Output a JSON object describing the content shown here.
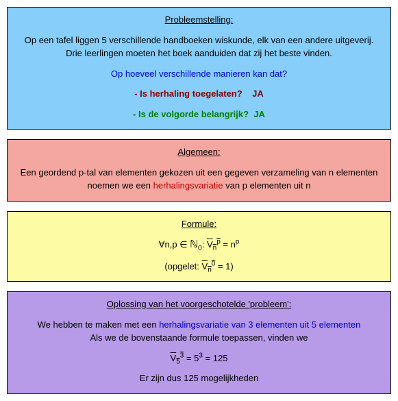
{
  "box1": {
    "bg": "#87cefa",
    "title": "Probleemstelling:",
    "p1": "Op een tafel liggen 5 verschillende handboeken wiskunde, elk van een andere uitgeverij. Drie leerlingen moeten het boek aanduiden dat zij het beste vinden.",
    "p2": "Op hoeveel verschillende manieren kan dat?",
    "q1_label": "- Is herhaling toegelaten?",
    "q1_ans": "JA",
    "q2_label": "- Is de volgorde belangrijk?",
    "q2_ans": "JA"
  },
  "box2": {
    "bg": "#f4a7a0",
    "title": "Algemeen:",
    "pre": "Een geordend p-tal van elementen gekozen uit een gegeven verzameling van n elementen noemen we een ",
    "term": "herhalingsvariatie",
    "post": " van p elementen uit n"
  },
  "box3": {
    "bg": "#fdfca4",
    "title": "Formule:",
    "forall": "∀n,p ∈ ",
    "nset": "ℕ",
    "sub0": "0",
    "colon": ": ",
    "vbar_base": "V",
    "vbar_sub": "n",
    "vbar_sup": "p",
    "eq": " = n",
    "sup_p": "p",
    "note_pre": "(opgelet: ",
    "note_sub": "n",
    "note_sup": "0",
    "note_post": " = 1)"
  },
  "box4": {
    "bg": "#b79ae8",
    "title": "Oplossing van het voorgeschotelde 'probleem':",
    "p1_pre": "We hebben te maken met een ",
    "p1_term": "herhalingsvariatie van 3 elementen uit 5 elementen",
    "p2": "Als we de bovenstaande formule toepassen, vinden we",
    "calc_v": "V",
    "calc_sub": "5",
    "calc_sup": "3",
    "calc_mid": " = 5",
    "calc_exp": "3",
    "calc_end": " = 125",
    "p3": "Er zijn dus 125 mogelijkheden"
  }
}
